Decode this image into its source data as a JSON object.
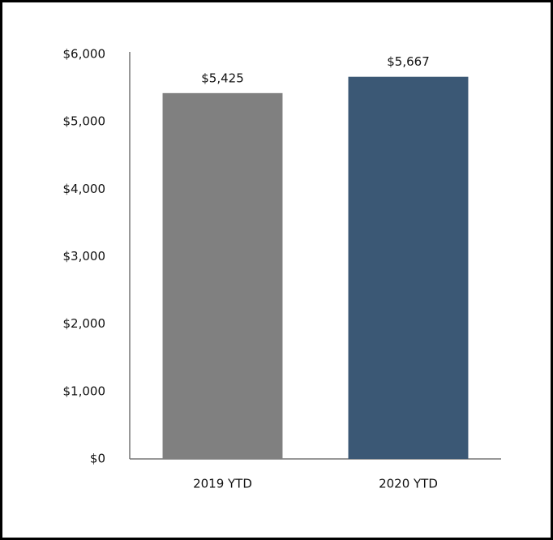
{
  "chart_data": {
    "type": "bar",
    "categories": [
      "2019 YTD",
      "2020 YTD"
    ],
    "values": [
      5425,
      5667
    ],
    "value_labels": [
      "$5,425",
      "$5,667"
    ],
    "colors": [
      "#808080",
      "#3b5875"
    ],
    "ylim": [
      0,
      6000
    ],
    "yticks": [
      {
        "value": 0,
        "label": "$0"
      },
      {
        "value": 1000,
        "label": "$1,000"
      },
      {
        "value": 2000,
        "label": "$2,000"
      },
      {
        "value": 3000,
        "label": "$3,000"
      },
      {
        "value": 4000,
        "label": "$4,000"
      },
      {
        "value": 5000,
        "label": "$5,000"
      },
      {
        "value": 6000,
        "label": "$6,000"
      }
    ],
    "grid": false
  }
}
